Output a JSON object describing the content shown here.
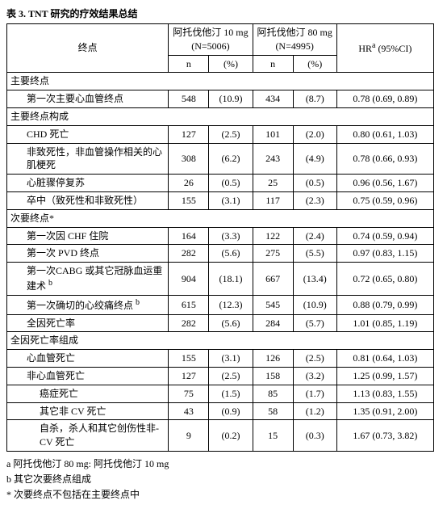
{
  "title": "表 3. TNT 研究的疗效结果总结",
  "header": {
    "endpoint": "终点",
    "arm10": "阿托伐他汀 10 mg",
    "arm10_n": "(N=5006)",
    "arm80": "阿托伐他汀 80 mg",
    "arm80_n": "(N=4995)",
    "hr": "HR<sup>a</sup> (95%CI)",
    "n": "n",
    "pct": "(%)"
  },
  "sections": [
    {
      "label": "主要终点",
      "rows": [
        {
          "label": "第一次主要心血管终点",
          "indent": 1,
          "n10": "548",
          "p10": "(10.9)",
          "n80": "434",
          "p80": "(8.7)",
          "hr": "0.78 (0.69, 0.89)"
        }
      ]
    },
    {
      "label": "主要终点构成",
      "rows": [
        {
          "label": "CHD 死亡",
          "indent": 1,
          "n10": "127",
          "p10": "(2.5)",
          "n80": "101",
          "p80": "(2.0)",
          "hr": "0.80 (0.61, 1.03)"
        },
        {
          "label": "非致死性，非血管操作相关的心肌梗死",
          "indent": 1,
          "n10": "308",
          "p10": "(6.2)",
          "n80": "243",
          "p80": "(4.9)",
          "hr": "0.78 (0.66, 0.93)"
        },
        {
          "label": "心脏骤停复苏",
          "indent": 1,
          "n10": "26",
          "p10": "(0.5)",
          "n80": "25",
          "p80": "(0.5)",
          "hr": "0.96 (0.56, 1.67)"
        },
        {
          "label": "卒中（致死性和非致死性）",
          "indent": 1,
          "n10": "155",
          "p10": "(3.1)",
          "n80": "117",
          "p80": "(2.3)",
          "hr": "0.75 (0.59, 0.96)"
        }
      ]
    },
    {
      "label": "次要终点*",
      "rows": [
        {
          "label": "第一次因 CHF 住院",
          "indent": 1,
          "n10": "164",
          "p10": "(3.3)",
          "n80": "122",
          "p80": "(2.4)",
          "hr": "0.74 (0.59, 0.94)"
        },
        {
          "label": "第一次 PVD 终点",
          "indent": 1,
          "n10": "282",
          "p10": "(5.6)",
          "n80": "275",
          "p80": "(5.5)",
          "hr": "0.97 (0.83, 1.15)"
        },
        {
          "label": "第一次CABG 或其它冠脉血运重建术 <sup>b</sup>",
          "indent": 1,
          "html": true,
          "n10": "904",
          "p10": "(18.1)",
          "n80": "667",
          "p80": "(13.4)",
          "hr": "0.72 (0.65, 0.80)"
        },
        {
          "label": "第一次确切的心绞痛终点 <sup>b</sup>",
          "indent": 1,
          "html": true,
          "n10": "615",
          "p10": "(12.3)",
          "n80": "545",
          "p80": "(10.9)",
          "hr": "0.88 (0.79, 0.99)"
        },
        {
          "label": "全因死亡率",
          "indent": 1,
          "n10": "282",
          "p10": "(5.6)",
          "n80": "284",
          "p80": "(5.7)",
          "hr": "1.01 (0.85, 1.19)"
        }
      ]
    },
    {
      "label": "全因死亡率组成",
      "rows": [
        {
          "label": "心血管死亡",
          "indent": 1,
          "n10": "155",
          "p10": "(3.1)",
          "n80": "126",
          "p80": "(2.5)",
          "hr": "0.81 (0.64, 1.03)"
        },
        {
          "label": "非心血管死亡",
          "indent": 1,
          "n10": "127",
          "p10": "(2.5)",
          "n80": "158",
          "p80": "(3.2)",
          "hr": "1.25 (0.99, 1.57)"
        },
        {
          "label": "癌症死亡",
          "indent": 2,
          "n10": "75",
          "p10": "(1.5)",
          "n80": "85",
          "p80": "(1.7)",
          "hr": "1.13 (0.83, 1.55)"
        },
        {
          "label": "其它非 CV 死亡",
          "indent": 2,
          "n10": "43",
          "p10": "(0.9)",
          "n80": "58",
          "p80": "(1.2)",
          "hr": "1.35 (0.91, 2.00)"
        },
        {
          "label": "自杀，杀人和其它创伤性非-CV 死亡",
          "indent": 2,
          "n10": "9",
          "p10": "(0.2)",
          "n80": "15",
          "p80": "(0.3)",
          "hr": "1.67 (0.73, 3.82)"
        }
      ]
    }
  ],
  "footnotes": {
    "a": "a  阿托伐他汀  80 mg:  阿托伐他汀 10 mg",
    "b": "b  其它次要终点组成",
    "star": "*  次要终点不包括在主要终点中"
  },
  "style": {
    "border_color": "#000000",
    "background": "#ffffff",
    "font_size": 12,
    "col_widths": [
      "200px",
      "50px",
      "54px",
      "50px",
      "54px",
      "120px"
    ]
  }
}
